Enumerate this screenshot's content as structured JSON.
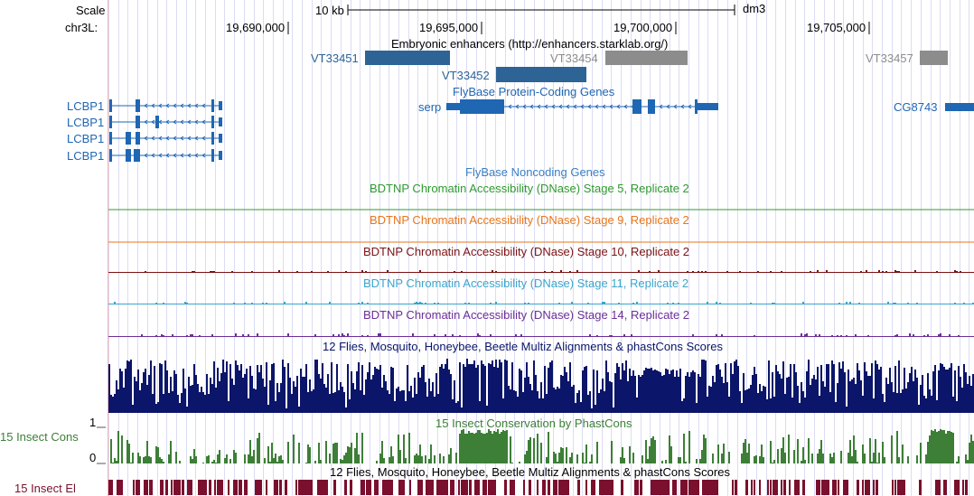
{
  "colors": {
    "fb_blue": "#1f66b3",
    "enh_blue": "#2e6396",
    "enh_gray": "#8c8c8c",
    "green": "#2f9a2f",
    "orange": "#e8761b",
    "maroon": "#7b1212",
    "cyan": "#3aa5cc",
    "purple": "#6b2f99",
    "navy": "#0b1569",
    "cons_green": "#3d7f37",
    "el_maroon": "#7a0f2e"
  },
  "ruler": {
    "scale_label": "Scale",
    "chrom_label": "chr3L:",
    "scale_bar_text": "10 kb",
    "assembly": "dm3",
    "positions": [
      "19,690,000",
      "19,695,000",
      "19,700,000",
      "19,705,000"
    ]
  },
  "tracks": {
    "enhancers": {
      "title": "Embryonic enhancers (http://enhancers.starklab.org/)",
      "items": [
        "VT33451",
        "VT33452",
        "VT33454",
        "VT33457"
      ]
    },
    "flybase_coding": {
      "title": "FlyBase Protein-Coding Genes",
      "genes": [
        "LCBP1",
        "LCBP1",
        "LCBP1",
        "LCBP1",
        "serp",
        "CG8743"
      ]
    },
    "flybase_noncoding": {
      "title": "FlyBase Noncoding Genes"
    },
    "dnase": [
      {
        "title": "BDTNP Chromatin Accessibility (DNase) Stage 5, Replicate 2"
      },
      {
        "title": "BDTNP Chromatin Accessibility (DNase) Stage 9, Replicate 2"
      },
      {
        "title": "BDTNP Chromatin Accessibility (DNase) Stage 10, Replicate 2"
      },
      {
        "title": "BDTNP Chromatin Accessibility (DNase) Stage 11, Replicate 2"
      },
      {
        "title": "BDTNP Chromatin Accessibility (DNase) Stage 14, Replicate 2"
      }
    ],
    "multiz": {
      "title": "12 Flies, Mosquito, Honeybee, Beetle Multiz Alignments & phastCons Scores"
    },
    "cons": {
      "title": "15 Insect Conservation by PhastCons",
      "side_label": "15 Insect Cons",
      "axis_top": "1",
      "axis_bottom": "0"
    },
    "elements": {
      "title": "12 Flies, Mosquito, Honeybee, Beetle Multiz Alignments & phastCons Scores",
      "side_label": "15 Insect El"
    }
  }
}
